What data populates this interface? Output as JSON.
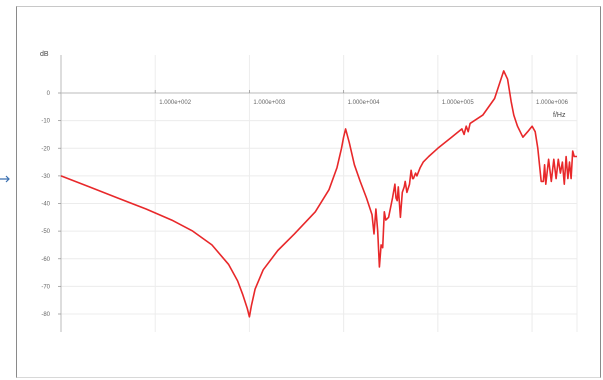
{
  "chart_data": {
    "type": "line",
    "y_unit": "dB",
    "x_unit": "f/Hz",
    "x_scale": "log",
    "xlim": [
      10,
      3000000
    ],
    "ylim": [
      -82,
      10
    ],
    "grid": true,
    "y_ticks": [
      0,
      -10,
      -20,
      -30,
      -40,
      -50,
      -60,
      -70,
      -80
    ],
    "y_tick_labels": [
      "0",
      "-10",
      "-20",
      "-30",
      "-40",
      "-50",
      "-60",
      "-70",
      "-80"
    ],
    "x_ticks": [
      100,
      1000,
      10000,
      100000,
      1000000
    ],
    "x_tick_labels": [
      "1.000e+002",
      "1.000e+003",
      "1.000e+004",
      "1.000e+005",
      "1.000e+006"
    ],
    "series": [
      {
        "color": "#e8282a",
        "x": [
          10,
          20,
          40,
          80,
          150,
          250,
          400,
          600,
          750,
          850,
          950,
          1000,
          1050,
          1150,
          1400,
          2000,
          3000,
          5000,
          7000,
          8500,
          9500,
          10000,
          10500,
          11500,
          13000,
          15000,
          17500,
          20000,
          21000,
          22000,
          23000,
          24000,
          25000,
          26000,
          27000,
          28000,
          30000,
          33000,
          35000,
          36000,
          37000,
          38000,
          40000,
          42000,
          44000,
          45000,
          47000,
          50000,
          52000,
          54000,
          55000,
          58000,
          60000,
          65000,
          70000,
          80000,
          100000,
          140000,
          180000,
          190000,
          200000,
          210000,
          220000,
          300000,
          400000,
          500000,
          550000,
          580000,
          600000,
          640000,
          700000,
          800000,
          900000,
          1000000,
          1080000,
          1150000,
          1250000,
          1320000,
          1360000,
          1400000,
          1500000,
          1600000,
          1700000,
          1800000,
          1900000,
          2000000,
          2100000,
          2200000,
          2300000,
          2400000,
          2500000,
          2600000,
          2700000,
          2800000,
          3000000
        ],
        "y": [
          -30,
          -34,
          -38,
          -42,
          -46,
          -50,
          -55,
          -62,
          -68,
          -73,
          -78,
          -81,
          -77,
          -71,
          -64,
          -57,
          -51,
          -43,
          -35,
          -27,
          -20,
          -16,
          -13,
          -18,
          -26,
          -32,
          -38,
          -44,
          -51,
          -42,
          -50,
          -63,
          -55,
          -56,
          -43,
          -46,
          -45,
          -38,
          -33,
          -38,
          -39,
          -34,
          -45,
          -36,
          -34,
          -32,
          -36,
          -33,
          -28,
          -31,
          -31,
          -29,
          -30,
          -27,
          -25,
          -23,
          -20,
          -16,
          -13,
          -15,
          -12,
          -14,
          -11,
          -8,
          -2,
          8,
          5,
          0,
          -3,
          -8,
          -12,
          -16,
          -14,
          -12,
          -14,
          -20,
          -32,
          -32,
          -26,
          -33,
          -24,
          -32,
          -24,
          -31,
          -24,
          -29,
          -25,
          -33,
          -23,
          -31,
          -25,
          -31,
          -21,
          -23,
          -23
        ]
      }
    ]
  }
}
